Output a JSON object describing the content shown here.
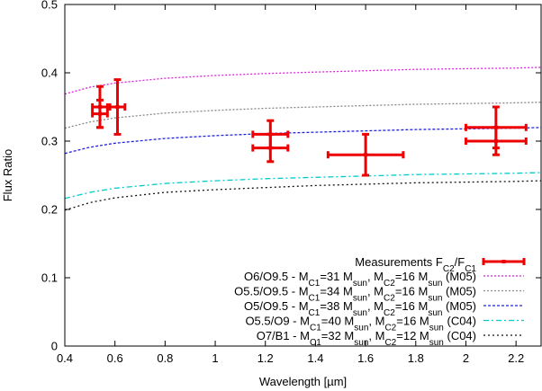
{
  "chart_data": {
    "type": "scatter",
    "xlabel": "Wavelength [µm]",
    "ylabel": "Flux Ratio",
    "xlim": [
      0.4,
      2.3
    ],
    "ylim": [
      0,
      0.5
    ],
    "x_ticks": [
      0.4,
      0.6,
      0.8,
      1,
      1.2,
      1.4,
      1.6,
      1.8,
      2,
      2.2
    ],
    "x_tick_labels": [
      "0.4",
      "0.6",
      "0.8",
      "1",
      "1.2",
      "1.4",
      "1.6",
      "1.8",
      "2",
      "2.2"
    ],
    "y_ticks": [
      0,
      0.1,
      0.2,
      0.3,
      0.4,
      0.5
    ],
    "y_tick_labels": [
      "0",
      "0.1",
      "0.2",
      "0.3",
      "0.4",
      "0.5"
    ],
    "grid": false,
    "legend_position": "bottom-right",
    "measurements": {
      "name_parts": {
        "base": "Measurements F",
        "sub1": "C2",
        "mid": "/F",
        "sub2": "C1"
      },
      "color": "#ee0000",
      "points": [
        {
          "x": 0.54,
          "y": 0.35,
          "xerr": 0.03,
          "yerr": 0.03
        },
        {
          "x": 0.54,
          "y": 0.34,
          "xerr": 0.03,
          "yerr": 0.02
        },
        {
          "x": 0.61,
          "y": 0.35,
          "xerr": 0.03,
          "yerr": 0.04
        },
        {
          "x": 1.22,
          "y": 0.31,
          "xerr": 0.07,
          "yerr": 0.02
        },
        {
          "x": 1.22,
          "y": 0.29,
          "xerr": 0.07,
          "yerr": 0.02
        },
        {
          "x": 1.6,
          "y": 0.28,
          "xerr": 0.15,
          "yerr": 0.03
        },
        {
          "x": 2.12,
          "y": 0.32,
          "xerr": 0.12,
          "yerr": 0.03
        },
        {
          "x": 2.12,
          "y": 0.3,
          "xerr": 0.12,
          "yerr": 0.02
        }
      ]
    },
    "series": [
      {
        "name_parts": [
          "O6/O9.5 - M",
          "C1",
          "=31 M",
          "sun",
          ", M",
          "C2",
          "=16 M",
          "sun",
          " (M05)"
        ],
        "color": "#dd22dd",
        "dash": "2,2",
        "x": [
          0.4,
          0.5,
          0.6,
          0.8,
          1.0,
          1.2,
          1.4,
          1.6,
          1.8,
          2.0,
          2.2,
          2.3
        ],
        "y": [
          0.369,
          0.379,
          0.385,
          0.392,
          0.396,
          0.399,
          0.401,
          0.403,
          0.405,
          0.406,
          0.407,
          0.408
        ]
      },
      {
        "name_parts": [
          "O5.5/O9.5 - M",
          "C1",
          "=34 M",
          "sun",
          ", M",
          "C2",
          "=16 M",
          "sun",
          " (M05)"
        ],
        "color": "#888888",
        "dash": "2,2",
        "x": [
          0.4,
          0.5,
          0.6,
          0.8,
          1.0,
          1.2,
          1.4,
          1.6,
          1.8,
          2.0,
          2.2,
          2.3
        ],
        "y": [
          0.319,
          0.328,
          0.334,
          0.341,
          0.345,
          0.348,
          0.35,
          0.352,
          0.354,
          0.355,
          0.356,
          0.357
        ]
      },
      {
        "name_parts": [
          "O5/O9.5 - M",
          "C1",
          "=38 M",
          "sun",
          ", M",
          "C2",
          "=16 M",
          "sun",
          " (M05)"
        ],
        "color": "#2222dd",
        "dash": "3,2",
        "x": [
          0.4,
          0.5,
          0.6,
          0.8,
          1.0,
          1.2,
          1.4,
          1.6,
          1.8,
          2.0,
          2.2,
          2.3
        ],
        "y": [
          0.282,
          0.291,
          0.297,
          0.304,
          0.308,
          0.311,
          0.313,
          0.315,
          0.317,
          0.318,
          0.319,
          0.32
        ]
      },
      {
        "name_parts": [
          "O5.5/O9 - M",
          "C1",
          "=40 M",
          "sun",
          ", M",
          "C2",
          "=16 M",
          "sun",
          " (C04)"
        ],
        "color": "#00cccc",
        "dash": "6,3,2,3",
        "x": [
          0.4,
          0.5,
          0.6,
          0.8,
          1.0,
          1.2,
          1.4,
          1.6,
          1.8,
          2.0,
          2.2,
          2.3
        ],
        "y": [
          0.216,
          0.225,
          0.231,
          0.238,
          0.242,
          0.245,
          0.247,
          0.249,
          0.251,
          0.252,
          0.253,
          0.254
        ]
      },
      {
        "name_parts": [
          "O7/B1 - M",
          "C1",
          "=32 M",
          "sun",
          ", M",
          "C2",
          "=12 M",
          "sun",
          " (C04)"
        ],
        "color": "#111111",
        "dash": "2,3",
        "x": [
          0.4,
          0.5,
          0.6,
          0.8,
          1.0,
          1.2,
          1.4,
          1.6,
          1.8,
          2.0,
          2.2,
          2.3
        ],
        "y": [
          0.199,
          0.21,
          0.217,
          0.225,
          0.229,
          0.232,
          0.235,
          0.237,
          0.239,
          0.24,
          0.241,
          0.242
        ]
      }
    ]
  }
}
